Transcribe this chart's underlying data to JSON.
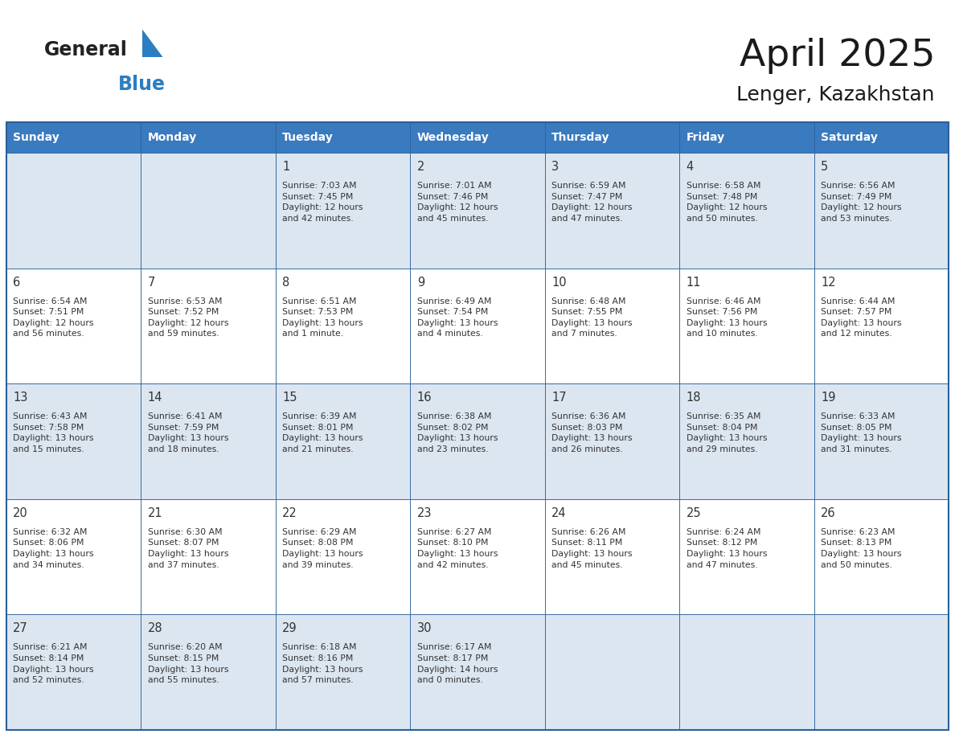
{
  "title": "April 2025",
  "subtitle": "Lenger, Kazakhstan",
  "days_of_week": [
    "Sunday",
    "Monday",
    "Tuesday",
    "Wednesday",
    "Thursday",
    "Friday",
    "Saturday"
  ],
  "header_bg": "#3a7abf",
  "header_text_color": "#ffffff",
  "row1_bg": "#dce6f1",
  "row2_bg": "#ffffff",
  "border_color": "#2a6099",
  "text_color": "#333333",
  "calendar_data": [
    [
      "",
      "",
      "1\nSunrise: 7:03 AM\nSunset: 7:45 PM\nDaylight: 12 hours\nand 42 minutes.",
      "2\nSunrise: 7:01 AM\nSunset: 7:46 PM\nDaylight: 12 hours\nand 45 minutes.",
      "3\nSunrise: 6:59 AM\nSunset: 7:47 PM\nDaylight: 12 hours\nand 47 minutes.",
      "4\nSunrise: 6:58 AM\nSunset: 7:48 PM\nDaylight: 12 hours\nand 50 minutes.",
      "5\nSunrise: 6:56 AM\nSunset: 7:49 PM\nDaylight: 12 hours\nand 53 minutes."
    ],
    [
      "6\nSunrise: 6:54 AM\nSunset: 7:51 PM\nDaylight: 12 hours\nand 56 minutes.",
      "7\nSunrise: 6:53 AM\nSunset: 7:52 PM\nDaylight: 12 hours\nand 59 minutes.",
      "8\nSunrise: 6:51 AM\nSunset: 7:53 PM\nDaylight: 13 hours\nand 1 minute.",
      "9\nSunrise: 6:49 AM\nSunset: 7:54 PM\nDaylight: 13 hours\nand 4 minutes.",
      "10\nSunrise: 6:48 AM\nSunset: 7:55 PM\nDaylight: 13 hours\nand 7 minutes.",
      "11\nSunrise: 6:46 AM\nSunset: 7:56 PM\nDaylight: 13 hours\nand 10 minutes.",
      "12\nSunrise: 6:44 AM\nSunset: 7:57 PM\nDaylight: 13 hours\nand 12 minutes."
    ],
    [
      "13\nSunrise: 6:43 AM\nSunset: 7:58 PM\nDaylight: 13 hours\nand 15 minutes.",
      "14\nSunrise: 6:41 AM\nSunset: 7:59 PM\nDaylight: 13 hours\nand 18 minutes.",
      "15\nSunrise: 6:39 AM\nSunset: 8:01 PM\nDaylight: 13 hours\nand 21 minutes.",
      "16\nSunrise: 6:38 AM\nSunset: 8:02 PM\nDaylight: 13 hours\nand 23 minutes.",
      "17\nSunrise: 6:36 AM\nSunset: 8:03 PM\nDaylight: 13 hours\nand 26 minutes.",
      "18\nSunrise: 6:35 AM\nSunset: 8:04 PM\nDaylight: 13 hours\nand 29 minutes.",
      "19\nSunrise: 6:33 AM\nSunset: 8:05 PM\nDaylight: 13 hours\nand 31 minutes."
    ],
    [
      "20\nSunrise: 6:32 AM\nSunset: 8:06 PM\nDaylight: 13 hours\nand 34 minutes.",
      "21\nSunrise: 6:30 AM\nSunset: 8:07 PM\nDaylight: 13 hours\nand 37 minutes.",
      "22\nSunrise: 6:29 AM\nSunset: 8:08 PM\nDaylight: 13 hours\nand 39 minutes.",
      "23\nSunrise: 6:27 AM\nSunset: 8:10 PM\nDaylight: 13 hours\nand 42 minutes.",
      "24\nSunrise: 6:26 AM\nSunset: 8:11 PM\nDaylight: 13 hours\nand 45 minutes.",
      "25\nSunrise: 6:24 AM\nSunset: 8:12 PM\nDaylight: 13 hours\nand 47 minutes.",
      "26\nSunrise: 6:23 AM\nSunset: 8:13 PM\nDaylight: 13 hours\nand 50 minutes."
    ],
    [
      "27\nSunrise: 6:21 AM\nSunset: 8:14 PM\nDaylight: 13 hours\nand 52 minutes.",
      "28\nSunrise: 6:20 AM\nSunset: 8:15 PM\nDaylight: 13 hours\nand 55 minutes.",
      "29\nSunrise: 6:18 AM\nSunset: 8:16 PM\nDaylight: 13 hours\nand 57 minutes.",
      "30\nSunrise: 6:17 AM\nSunset: 8:17 PM\nDaylight: 14 hours\nand 0 minutes.",
      "",
      "",
      ""
    ]
  ],
  "logo_general_color": "#222222",
  "logo_blue_color": "#2b7ec1",
  "logo_triangle_color": "#2b7ec1",
  "fig_width": 11.88,
  "fig_height": 9.18,
  "dpi": 100
}
